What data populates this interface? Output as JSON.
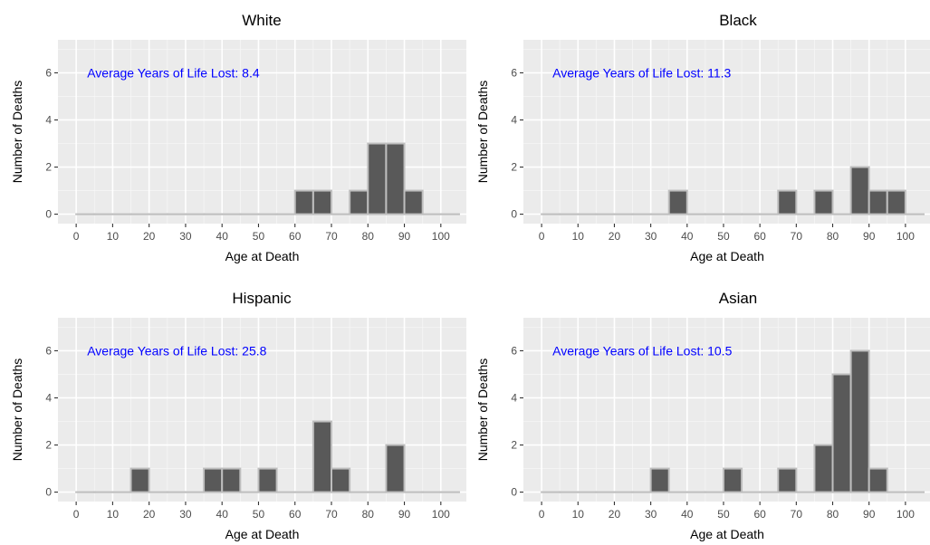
{
  "colors": {
    "panel_bg": "#ebebeb",
    "grid_major": "#ffffff",
    "bar_fill": "#595959",
    "bar_stroke": "#bebebe",
    "annotation": "#0000ff",
    "tick": "#333333"
  },
  "chart_data": [
    {
      "type": "bar",
      "title": "White",
      "xlabel": "Age at Death",
      "ylabel": "Number of Deaths",
      "xlim": [
        -5,
        107
      ],
      "ylim": [
        -0.4,
        7.4
      ],
      "xticks": [
        0,
        10,
        20,
        30,
        40,
        50,
        60,
        70,
        80,
        90,
        100
      ],
      "yticks": [
        0,
        2,
        4,
        6
      ],
      "bin_width": 5,
      "bins": [
        [
          0,
          0
        ],
        [
          5,
          0
        ],
        [
          10,
          0
        ],
        [
          15,
          0
        ],
        [
          20,
          0
        ],
        [
          25,
          0
        ],
        [
          30,
          0
        ],
        [
          35,
          0
        ],
        [
          40,
          0
        ],
        [
          45,
          0
        ],
        [
          50,
          0
        ],
        [
          55,
          0
        ],
        [
          60,
          1
        ],
        [
          65,
          1
        ],
        [
          70,
          0
        ],
        [
          75,
          1
        ],
        [
          80,
          3
        ],
        [
          85,
          3
        ],
        [
          90,
          1
        ],
        [
          95,
          0
        ],
        [
          100,
          0
        ]
      ],
      "annotation": "Average Years of Life Lost:  8.4",
      "grid": true
    },
    {
      "type": "bar",
      "title": "Black",
      "xlabel": "Age at Death",
      "ylabel": "Number of Deaths",
      "xlim": [
        -5,
        107
      ],
      "ylim": [
        -0.4,
        7.4
      ],
      "xticks": [
        0,
        10,
        20,
        30,
        40,
        50,
        60,
        70,
        80,
        90,
        100
      ],
      "yticks": [
        0,
        2,
        4,
        6
      ],
      "bin_width": 5,
      "bins": [
        [
          0,
          0
        ],
        [
          5,
          0
        ],
        [
          10,
          0
        ],
        [
          15,
          0
        ],
        [
          20,
          0
        ],
        [
          25,
          0
        ],
        [
          30,
          0
        ],
        [
          35,
          1
        ],
        [
          40,
          0
        ],
        [
          45,
          0
        ],
        [
          50,
          0
        ],
        [
          55,
          0
        ],
        [
          60,
          0
        ],
        [
          65,
          1
        ],
        [
          70,
          0
        ],
        [
          75,
          1
        ],
        [
          80,
          0
        ],
        [
          85,
          2
        ],
        [
          90,
          1
        ],
        [
          95,
          1
        ],
        [
          100,
          0
        ]
      ],
      "annotation": "Average Years of Life Lost:  11.3",
      "grid": true
    },
    {
      "type": "bar",
      "title": "Hispanic",
      "xlabel": "Age at Death",
      "ylabel": "Number of Deaths",
      "xlim": [
        -5,
        107
      ],
      "ylim": [
        -0.4,
        7.4
      ],
      "xticks": [
        0,
        10,
        20,
        30,
        40,
        50,
        60,
        70,
        80,
        90,
        100
      ],
      "yticks": [
        0,
        2,
        4,
        6
      ],
      "bin_width": 5,
      "bins": [
        [
          0,
          0
        ],
        [
          5,
          0
        ],
        [
          10,
          0
        ],
        [
          15,
          1
        ],
        [
          20,
          0
        ],
        [
          25,
          0
        ],
        [
          30,
          0
        ],
        [
          35,
          1
        ],
        [
          40,
          1
        ],
        [
          45,
          0
        ],
        [
          50,
          1
        ],
        [
          55,
          0
        ],
        [
          60,
          0
        ],
        [
          65,
          3
        ],
        [
          70,
          1
        ],
        [
          75,
          0
        ],
        [
          80,
          0
        ],
        [
          85,
          2
        ],
        [
          90,
          0
        ],
        [
          95,
          0
        ],
        [
          100,
          0
        ]
      ],
      "annotation": "Average Years of Life Lost:  25.8",
      "grid": true
    },
    {
      "type": "bar",
      "title": "Asian",
      "xlabel": "Age at Death",
      "ylabel": "Number of Deaths",
      "xlim": [
        -5,
        107
      ],
      "ylim": [
        -0.4,
        7.4
      ],
      "xticks": [
        0,
        10,
        20,
        30,
        40,
        50,
        60,
        70,
        80,
        90,
        100
      ],
      "yticks": [
        0,
        2,
        4,
        6
      ],
      "bin_width": 5,
      "bins": [
        [
          0,
          0
        ],
        [
          5,
          0
        ],
        [
          10,
          0
        ],
        [
          15,
          0
        ],
        [
          20,
          0
        ],
        [
          25,
          0
        ],
        [
          30,
          1
        ],
        [
          35,
          0
        ],
        [
          40,
          0
        ],
        [
          45,
          0
        ],
        [
          50,
          1
        ],
        [
          55,
          0
        ],
        [
          60,
          0
        ],
        [
          65,
          1
        ],
        [
          70,
          0
        ],
        [
          75,
          2
        ],
        [
          80,
          5
        ],
        [
          85,
          6
        ],
        [
          90,
          1
        ],
        [
          95,
          0
        ],
        [
          100,
          0
        ]
      ],
      "annotation": "Average Years of Life Lost:  10.5",
      "grid": true
    }
  ]
}
